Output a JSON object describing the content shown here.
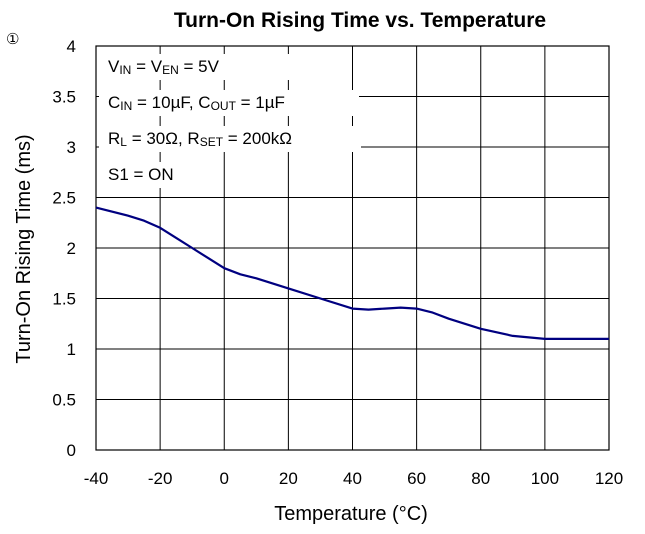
{
  "corner_marker": "①",
  "chart_data": {
    "type": "line",
    "title": "Turn-On Rising Time vs. Temperature",
    "xlabel": "Temperature (°C)",
    "ylabel": "Turn-On Rising Time (ms)",
    "xlim": [
      -40,
      120
    ],
    "ylim": [
      0,
      4
    ],
    "xticks": [
      "-40",
      "-20",
      "0",
      "20",
      "40",
      "60",
      "80",
      "100",
      "120"
    ],
    "yticks": [
      "0",
      "0.5",
      "1",
      "1.5",
      "2",
      "2.5",
      "3",
      "3.5",
      "4"
    ],
    "grid": true,
    "line_color": "#000080",
    "annotations": [
      {
        "main": "V",
        "sub": "IN",
        "rest": " = V",
        "sub2": "EN",
        "rest2": " = 5V"
      },
      {
        "main": "C",
        "sub": "IN",
        "rest": " = 10µF, C",
        "sub2": "OUT",
        "rest2": " = 1µF"
      },
      {
        "main": "R",
        "sub": "L",
        "rest": " = 30Ω, R",
        "sub2": "SET",
        "rest2": " = 200kΩ"
      },
      {
        "main": "S1 = ON",
        "sub": "",
        "rest": "",
        "sub2": "",
        "rest2": ""
      }
    ],
    "series": [
      {
        "x": [
          -40,
          -30,
          -25,
          -20,
          -15,
          -10,
          -5,
          0,
          5,
          10,
          20,
          30,
          40,
          45,
          50,
          55,
          60,
          65,
          70,
          80,
          90,
          100,
          110,
          120
        ],
        "y": [
          2.4,
          2.32,
          2.27,
          2.2,
          2.1,
          2.0,
          1.9,
          1.8,
          1.74,
          1.7,
          1.6,
          1.5,
          1.4,
          1.39,
          1.4,
          1.41,
          1.4,
          1.36,
          1.3,
          1.2,
          1.13,
          1.1,
          1.1,
          1.1
        ]
      }
    ]
  }
}
